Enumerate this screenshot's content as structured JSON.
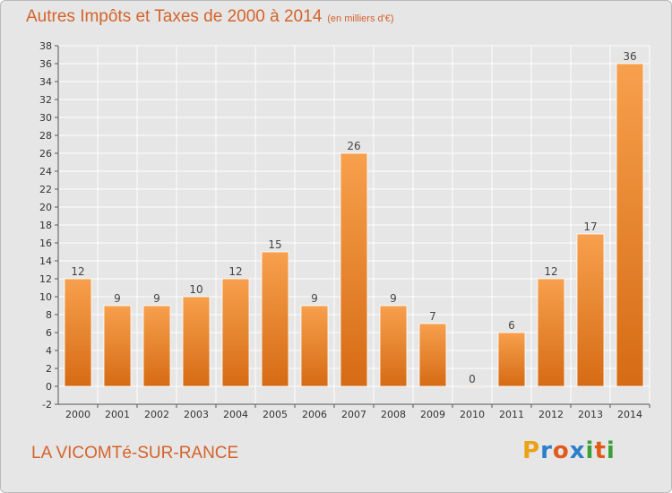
{
  "header": {
    "title": "Autres Impôts et Taxes de 2000 à 2014",
    "unit": "(en milliers d'€)"
  },
  "footer": {
    "commune": "LA VICOMTé-SUR-RANCE",
    "logo_letters": [
      "P",
      "r",
      "o",
      "x",
      "i",
      "t",
      "i"
    ],
    "logo_colors": [
      "#e8a317",
      "#2d7fc9",
      "#e05a1c",
      "#2d7fc9",
      "#3aa13a",
      "#e05a1c",
      "#3aa13a"
    ]
  },
  "chart_data": {
    "type": "bar",
    "title": "Autres Impôts et Taxes de 2000 à 2014",
    "categories": [
      "2000",
      "2001",
      "2002",
      "2003",
      "2004",
      "2005",
      "2006",
      "2007",
      "2008",
      "2009",
      "2010",
      "2011",
      "2012",
      "2013",
      "2014"
    ],
    "values": [
      12,
      9,
      9,
      10,
      12,
      15,
      9,
      26,
      9,
      7,
      0,
      6,
      12,
      17,
      36
    ],
    "ylim": [
      -2,
      38
    ],
    "yticks": [
      -2,
      0,
      2,
      4,
      6,
      8,
      10,
      12,
      14,
      16,
      18,
      20,
      22,
      24,
      26,
      28,
      30,
      32,
      34,
      36,
      38
    ],
    "grid": true,
    "bar_color": "#f08a30"
  }
}
